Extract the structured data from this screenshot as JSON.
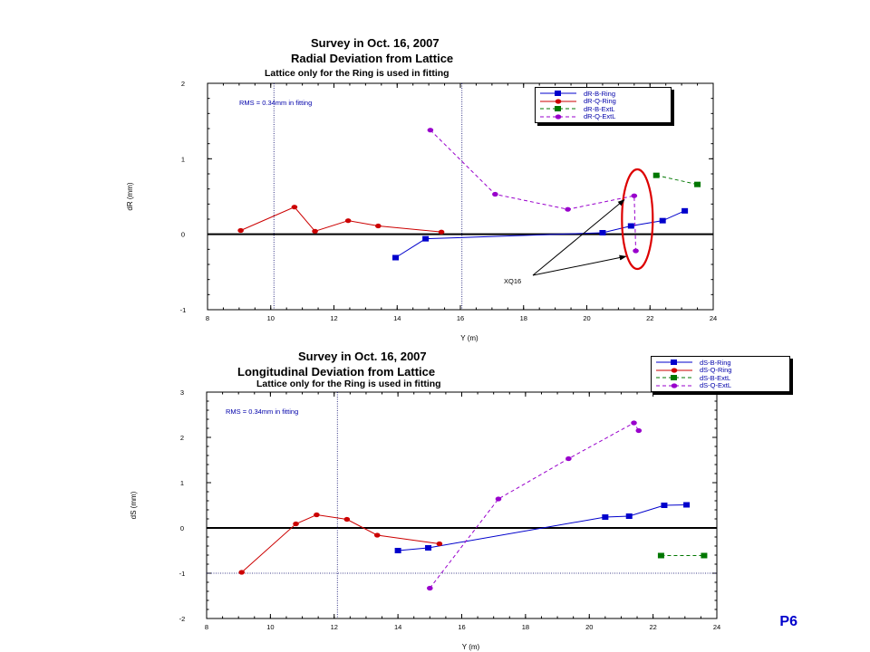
{
  "page_label": "P6",
  "chart_data": [
    {
      "type": "line",
      "title": "Survey in Oct. 16, 2007",
      "subtitle": "Radial Deviation from Lattice",
      "note": "Lattice only for the Ring is used in fitting",
      "xlabel": "Y (m)",
      "ylabel": "dR (mm)",
      "xlim": [
        8,
        24
      ],
      "ylim": [
        -1,
        2
      ],
      "xticks": [
        8,
        10,
        12,
        14,
        16,
        18,
        20,
        22,
        24
      ],
      "yticks": [
        -1,
        0,
        1,
        2
      ],
      "grid": false,
      "legend_position": "top-right",
      "rms_text": "RMS = 0.34mm in fitting",
      "dotted_vlines": [
        10.1,
        16.05
      ],
      "annotation": {
        "text": "XQ16",
        "targets": [
          [
            21.3,
            0.48
          ],
          [
            21.35,
            -0.27
          ]
        ],
        "circle": {
          "x": 21.6,
          "y": 0.2
        }
      },
      "series": [
        {
          "name": "dR-B-Ring",
          "color": "#0000cc",
          "marker": "square",
          "dash": false,
          "x": [
            13.95,
            14.9,
            20.5,
            21.4,
            22.4,
            23.1
          ],
          "y": [
            -0.31,
            -0.06,
            0.02,
            0.11,
            0.18,
            0.31
          ]
        },
        {
          "name": "dR-Q-Ring",
          "color": "#cc0000",
          "marker": "circle",
          "dash": false,
          "x": [
            9.05,
            10.75,
            11.4,
            12.45,
            13.4,
            15.4
          ],
          "y": [
            0.05,
            0.36,
            0.04,
            0.18,
            0.11,
            0.03
          ]
        },
        {
          "name": "dR-B-ExtL",
          "color": "#007700",
          "marker": "square",
          "dash": true,
          "x": [
            22.2,
            23.5
          ],
          "y": [
            0.78,
            0.66
          ]
        },
        {
          "name": "dR-Q-ExtL",
          "color": "#9900cc",
          "marker": "circle",
          "dash": true,
          "x": [
            15.05,
            17.1,
            19.4,
            21.5,
            21.55
          ],
          "y": [
            1.38,
            0.53,
            0.33,
            0.51,
            -0.22
          ]
        }
      ]
    },
    {
      "type": "line",
      "title": "Survey in Oct. 16, 2007",
      "subtitle": "Longitudinal Deviation from Lattice",
      "note": "Lattice only for the Ring is used in fitting",
      "xlabel": "Y (m)",
      "ylabel": "dS (mm)",
      "xlim": [
        8,
        24
      ],
      "ylim": [
        -2,
        3
      ],
      "xticks": [
        8,
        10,
        12,
        14,
        16,
        18,
        20,
        22,
        24
      ],
      "yticks": [
        -2,
        -1,
        0,
        1,
        2,
        3
      ],
      "grid": false,
      "legend_position": "top-right",
      "rms_text": "RMS = 0.34mm in fitting",
      "dotted_vlines": [
        12.1
      ],
      "dotted_hlines": [
        -1
      ],
      "series": [
        {
          "name": "dS-B-Ring",
          "color": "#0000cc",
          "marker": "square",
          "dash": false,
          "x": [
            14.0,
            14.95,
            20.5,
            21.25,
            22.35,
            23.05
          ],
          "y": [
            -0.5,
            -0.44,
            0.24,
            0.26,
            0.5,
            0.51
          ]
        },
        {
          "name": "dS-Q-Ring",
          "color": "#cc0000",
          "marker": "circle",
          "dash": false,
          "x": [
            9.1,
            10.8,
            11.45,
            12.4,
            13.35,
            15.3
          ],
          "y": [
            -0.98,
            0.09,
            0.29,
            0.19,
            -0.16,
            -0.35
          ]
        },
        {
          "name": "dS-B-ExtL",
          "color": "#007700",
          "marker": "square",
          "dash": true,
          "x": [
            22.25,
            23.6
          ],
          "y": [
            -0.61,
            -0.61
          ]
        },
        {
          "name": "dS-Q-ExtL",
          "color": "#9900cc",
          "marker": "circle",
          "dash": true,
          "x": [
            15.0,
            17.15,
            19.35,
            21.4,
            21.55
          ],
          "y": [
            -1.33,
            0.64,
            1.53,
            2.32,
            2.15
          ]
        }
      ]
    }
  ]
}
